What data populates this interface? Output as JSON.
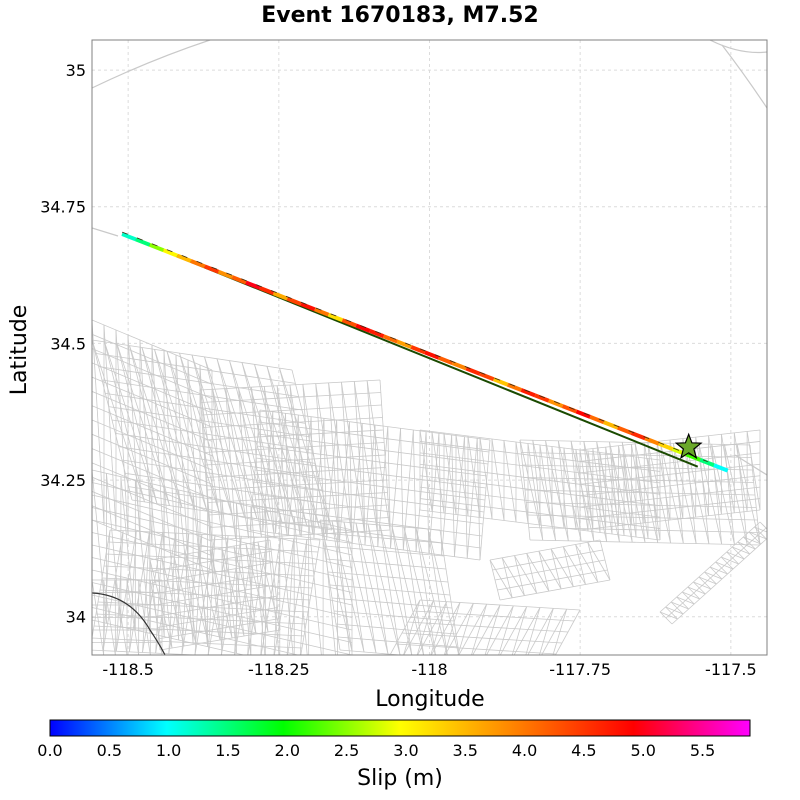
{
  "title": "Event 1670183, M7.52",
  "axes": {
    "xlabel": "Longitude",
    "ylabel": "Latitude",
    "xlim": [
      -118.56,
      -117.44
    ],
    "ylim": [
      33.93,
      35.055
    ],
    "xticks": [
      {
        "value": -118.5,
        "label": "-118.5"
      },
      {
        "value": -118.25,
        "label": "-118.25"
      },
      {
        "value": -118.0,
        "label": "-118"
      },
      {
        "value": -117.75,
        "label": "-117.75"
      },
      {
        "value": -117.5,
        "label": "-117.5"
      }
    ],
    "yticks": [
      {
        "value": 34.0,
        "label": "34"
      },
      {
        "value": 34.25,
        "label": "34.25"
      },
      {
        "value": 34.5,
        "label": "34.5"
      },
      {
        "value": 34.75,
        "label": "34.75"
      },
      {
        "value": 35.0,
        "label": "35"
      }
    ],
    "grid": true
  },
  "rupture": {
    "trace": [
      [
        -118.51,
        34.7
      ],
      [
        -117.53,
        34.28
      ]
    ],
    "hypocenter": [
      -117.57,
      34.31
    ],
    "slip_m": [
      1.2,
      1.5,
      2.5,
      3.0,
      3.5,
      4.0,
      4.5,
      3.8,
      4.2,
      5.0,
      4.6,
      3.6,
      4.4,
      4.8,
      4.0,
      3.2,
      4.3,
      4.9,
      4.7,
      4.1,
      3.7,
      4.5,
      4.8,
      4.2,
      3.9,
      4.6,
      4.4,
      3.4,
      4.0,
      4.7,
      4.5,
      3.8,
      4.3,
      4.9,
      4.1,
      3.5,
      4.2,
      4.6,
      3.9,
      3.3,
      2.8,
      2.2,
      1.5,
      1.0
    ]
  },
  "colorbar": {
    "label": "Slip (m)",
    "min": 0.0,
    "max": 5.9,
    "ticks": [
      "0.0",
      "0.5",
      "1.0",
      "1.5",
      "2.0",
      "2.5",
      "3.0",
      "3.5",
      "4.0",
      "4.5",
      "5.0",
      "5.5"
    ],
    "colors": [
      "#0000ff",
      "#00ffff",
      "#00ff00",
      "#ffff00",
      "#ff8000",
      "#ff0000",
      "#ff00ff"
    ]
  },
  "colors": {
    "trace_outline": "#1a4a00",
    "mesh": "#c9c9c9",
    "hypocenter_fill": "#6aa82a"
  },
  "icons": {
    "hypocenter": "star-icon"
  }
}
